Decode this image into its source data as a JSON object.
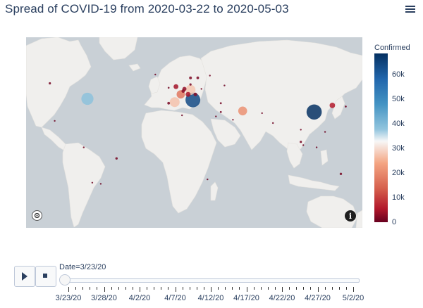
{
  "title": "Spread of COVID-19 from 2020-03-22 to 2020-05-03",
  "colorbar": {
    "title": "Confirmed",
    "ticks": [
      "60k",
      "50k",
      "40k",
      "30k",
      "20k",
      "10k",
      "0"
    ],
    "scale": [
      "#053061",
      "#2166ac",
      "#4393c3",
      "#92c5de",
      "#f7f7f7",
      "#f4a582",
      "#d6604d",
      "#b2182b",
      "#67001f"
    ]
  },
  "slider": {
    "current_label": "Date=3/23/20",
    "tick_labels": [
      "3/23/20",
      "3/28/20",
      "4/2/20",
      "4/7/20",
      "4/12/20",
      "4/17/20",
      "4/22/20",
      "4/27/20",
      "5/2/20"
    ]
  },
  "icons": {
    "menu": "hamburger-menu-icon",
    "play": "play-icon",
    "stop": "stop-icon",
    "compass": "compass-icon",
    "info": "info-icon"
  },
  "map_colors": {
    "water": "#c9d0d6",
    "land": "#f0efed"
  },
  "chart_data": {
    "type": "scatter",
    "title": "Spread of COVID-19 from 2020-03-22 to 2020-05-03",
    "colorbar_label": "Confirmed",
    "color_range": [
      0,
      68000
    ],
    "current_frame": "3/23/20",
    "points": [
      {
        "lon": 112,
        "lat": 31,
        "confirmed": 67800
      },
      {
        "lon": 12,
        "lat": 42,
        "confirmed": 63900
      },
      {
        "lon": -75,
        "lat": 43,
        "confirmed": 43000
      },
      {
        "lon": 53,
        "lat": 32,
        "confirmed": 23000
      },
      {
        "lon": 10,
        "lat": 51,
        "confirmed": 29000
      },
      {
        "lon": -3,
        "lat": 40,
        "confirmed": 28500
      },
      {
        "lon": 2,
        "lat": 47,
        "confirmed": 19800
      },
      {
        "lon": 8,
        "lat": 47,
        "confirmed": 7200
      },
      {
        "lon": 127,
        "lat": 37,
        "confirmed": 8900
      },
      {
        "lon": -2,
        "lat": 54,
        "confirmed": 6700
      },
      {
        "lon": 5,
        "lat": 52,
        "confirmed": 4700
      },
      {
        "lon": 4,
        "lat": 50,
        "confirmed": 3700
      },
      {
        "lon": 14,
        "lat": 47,
        "confirmed": 3600
      },
      {
        "lon": 10,
        "lat": 56,
        "confirmed": 1400
      },
      {
        "lon": 10,
        "lat": 62,
        "confirmed": 2400
      },
      {
        "lon": 16,
        "lat": 62,
        "confirmed": 2000
      },
      {
        "lon": 26,
        "lat": 64,
        "confirmed": 700
      },
      {
        "lon": -8,
        "lat": 39,
        "confirmed": 2000
      },
      {
        "lon": 19,
        "lat": 52,
        "confirmed": 800
      },
      {
        "lon": 35,
        "lat": 39,
        "confirmed": 1200
      },
      {
        "lon": 138,
        "lat": 36,
        "confirmed": 1100
      },
      {
        "lon": 101,
        "lat": 4,
        "confirmed": 1500
      },
      {
        "lon": 101,
        "lat": 15,
        "confirmed": 700
      },
      {
        "lon": 103,
        "lat": 1,
        "confirmed": 500
      },
      {
        "lon": 121,
        "lat": 13,
        "confirmed": 500
      },
      {
        "lon": 114,
        "lat": -1,
        "confirmed": 500
      },
      {
        "lon": 134,
        "lat": -25,
        "confirmed": 1600
      },
      {
        "lon": 174,
        "lat": -41,
        "confirmed": 100
      },
      {
        "lon": 78,
        "lat": 21,
        "confirmed": 500
      },
      {
        "lon": 69,
        "lat": 30,
        "confirmed": 800
      },
      {
        "lon": 45,
        "lat": 24,
        "confirmed": 500
      },
      {
        "lon": 35,
        "lat": 31,
        "confirmed": 1200
      },
      {
        "lon": 31,
        "lat": 27,
        "confirmed": 300
      },
      {
        "lon": 3,
        "lat": 28,
        "confirmed": 200
      },
      {
        "lon": 24,
        "lat": -30,
        "confirmed": 400
      },
      {
        "lon": 38,
        "lat": 55,
        "confirmed": 400
      },
      {
        "lon": -51,
        "lat": -11,
        "confirmed": 1600
      },
      {
        "lon": -71,
        "lat": -33,
        "confirmed": 700
      },
      {
        "lon": -64,
        "lat": -34,
        "confirmed": 200
      },
      {
        "lon": -78,
        "lat": -1,
        "confirmed": 800
      },
      {
        "lon": -102,
        "lat": 23,
        "confirmed": 300
      },
      {
        "lon": -106,
        "lat": 57,
        "confirmed": 1500
      },
      {
        "lon": -19,
        "lat": 65,
        "confirmed": 600
      },
      {
        "lon": -8,
        "lat": 53,
        "confirmed": 1000
      }
    ]
  }
}
